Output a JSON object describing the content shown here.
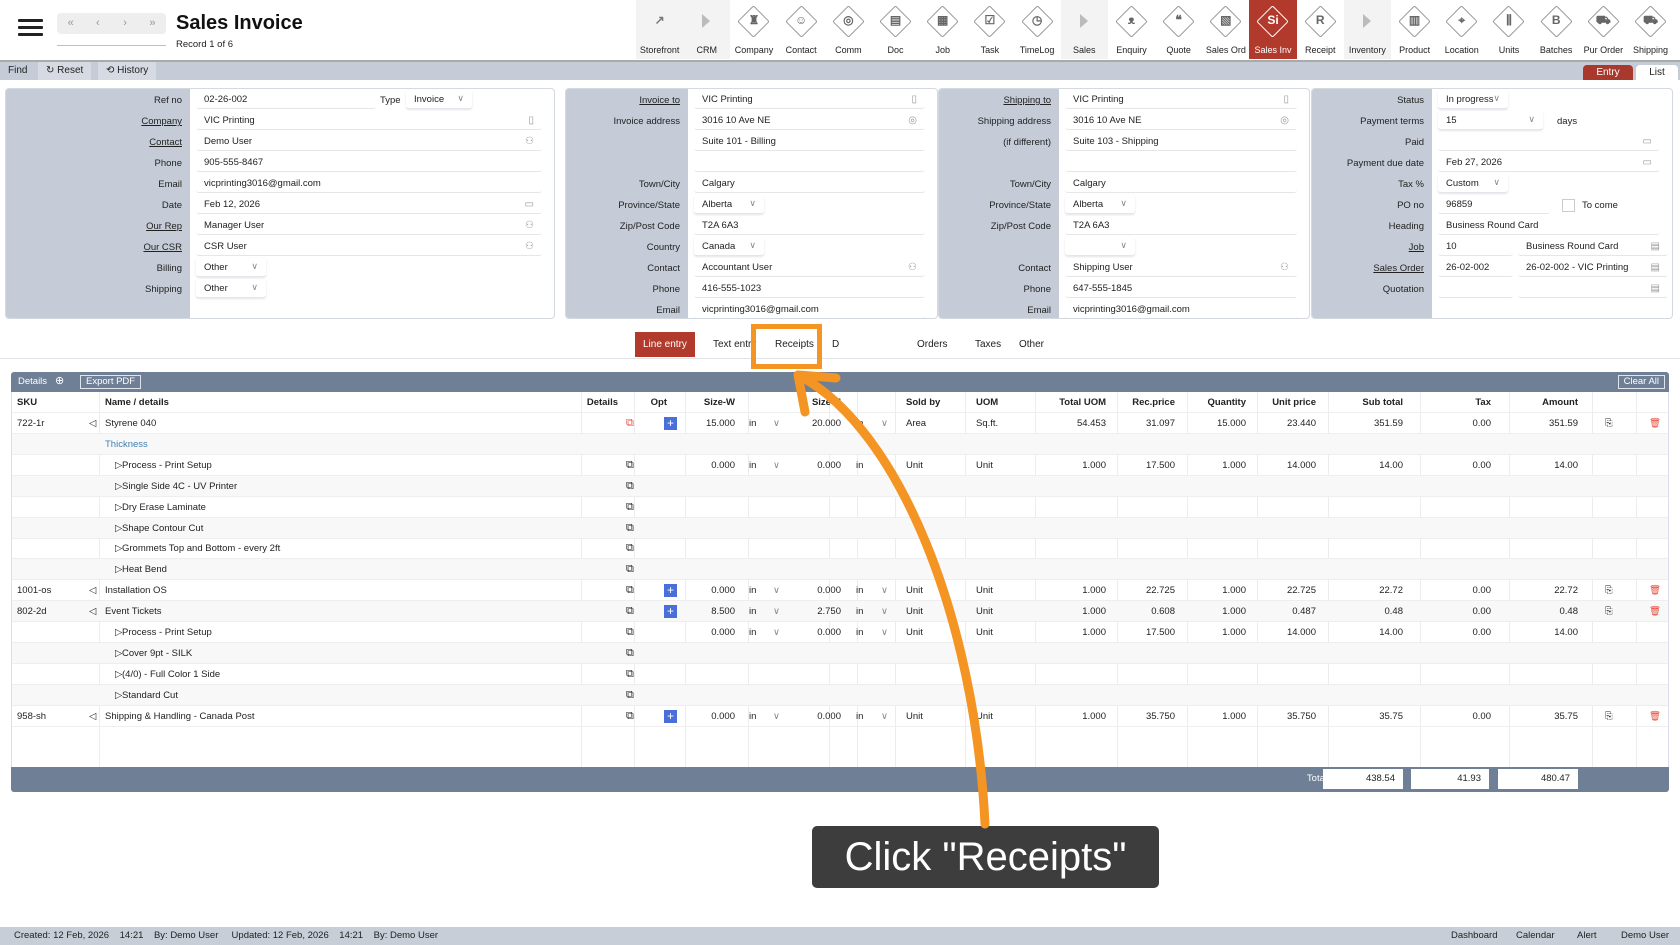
{
  "header": {
    "title": "Sales Invoice",
    "record": "Record 1 of 6",
    "nav": [
      "«",
      "‹",
      "›",
      "»"
    ]
  },
  "topnav": [
    {
      "label": "Storefront",
      "icon": "external-link-icon",
      "glyph": "↗",
      "style": "grey"
    },
    {
      "label": "CRM",
      "icon": "arrow-icon",
      "style": "arrow"
    },
    {
      "label": "Company",
      "icon": "company-icon",
      "glyph": "♜"
    },
    {
      "label": "Contact",
      "icon": "contact-icon",
      "glyph": "☺"
    },
    {
      "label": "Comm",
      "icon": "globe-icon",
      "glyph": "◎"
    },
    {
      "label": "Doc",
      "icon": "document-icon",
      "glyph": "▤"
    },
    {
      "label": "Job",
      "icon": "job-icon",
      "glyph": "▦"
    },
    {
      "label": "Task",
      "icon": "clipboard-icon",
      "glyph": "☑"
    },
    {
      "label": "TimeLog",
      "icon": "clock-icon",
      "glyph": "◷"
    },
    {
      "label": "Sales",
      "icon": "arrow-icon",
      "style": "arrow"
    },
    {
      "label": "Enquiry",
      "icon": "binoculars-icon",
      "glyph": "ᴥ"
    },
    {
      "label": "Quote",
      "icon": "quote-icon",
      "glyph": "❝"
    },
    {
      "label": "Sales Ord",
      "icon": "sales-order-icon",
      "glyph": "▧"
    },
    {
      "label": "Sales Inv",
      "icon": "sales-invoice-icon",
      "glyph": "Si",
      "style": "active"
    },
    {
      "label": "Receipt",
      "icon": "receipt-icon",
      "glyph": "R"
    },
    {
      "label": "Inventory",
      "icon": "arrow-icon",
      "style": "arrow"
    },
    {
      "label": "Product",
      "icon": "product-icon",
      "glyph": "▥"
    },
    {
      "label": "Location",
      "icon": "location-icon",
      "glyph": "⌖"
    },
    {
      "label": "Units",
      "icon": "units-icon",
      "glyph": "⫼"
    },
    {
      "label": "Batches",
      "icon": "batches-icon",
      "glyph": "B"
    },
    {
      "label": "Pur Order",
      "icon": "cart-icon",
      "glyph": "⛟"
    },
    {
      "label": "Shipping",
      "icon": "truck-icon",
      "glyph": "⛟"
    }
  ],
  "toolbar": {
    "find": "Find",
    "reset": "↻ Reset",
    "history": "⟲ History",
    "entry": "Entry",
    "list": "List"
  },
  "panels": [
    {
      "rows": [
        {
          "label": "Ref no",
          "value": "02-26-002",
          "extra_label": "Type",
          "extra_value": "Invoice"
        },
        {
          "label": "Company",
          "link": true,
          "value": "VIC Printing",
          "icon": "building-icon"
        },
        {
          "label": "Contact",
          "link": true,
          "value": "Demo User",
          "icon": "person-icon"
        },
        {
          "label": "Phone",
          "value": "905-555-8467"
        },
        {
          "label": "Email",
          "value": "vicprinting3016@gmail.com"
        },
        {
          "label": "Date",
          "value": "Feb 12, 2026",
          "icon": "calendar-icon"
        },
        {
          "label": "Our Rep",
          "link": true,
          "value": "Manager User",
          "icon": "person-icon"
        },
        {
          "label": "Our CSR",
          "link": true,
          "value": "CSR User",
          "icon": "person-icon"
        },
        {
          "label": "Billing",
          "value": "Other",
          "select": true
        },
        {
          "label": "Shipping",
          "value": "Other",
          "select": true
        }
      ]
    },
    {
      "rows": [
        {
          "label": "Invoice to",
          "link": true,
          "value": "VIC Printing",
          "icon": "building-icon"
        },
        {
          "label": "Invoice address",
          "value": "3016 10 Ave NE",
          "icon": "pin-icon"
        },
        {
          "label": "",
          "value": "Suite 101 - Billing"
        },
        {
          "label": "",
          "value": ""
        },
        {
          "label": "Town/City",
          "value": "Calgary"
        },
        {
          "label": "Province/State",
          "value": "Alberta",
          "select": true
        },
        {
          "label": "Zip/Post Code",
          "value": "T2A 6A3"
        },
        {
          "label": "Country",
          "value": "Canada",
          "select": true
        },
        {
          "label": "Contact",
          "value": "Accountant User",
          "icon": "person-icon"
        },
        {
          "label": "Phone",
          "value": "416-555-1023"
        },
        {
          "label": "Email",
          "value": "vicprinting3016@gmail.com"
        }
      ]
    },
    {
      "rows": [
        {
          "label": "Shipping to",
          "link": true,
          "value": "VIC Printing",
          "icon": "building-icon"
        },
        {
          "label": "Shipping address",
          "value": "3016 10 Ave NE",
          "icon": "pin-icon"
        },
        {
          "label": "(if different)",
          "value": "Suite 103 - Shipping"
        },
        {
          "label": "",
          "value": ""
        },
        {
          "label": "Town/City",
          "value": "Calgary"
        },
        {
          "label": "Province/State",
          "value": "Alberta",
          "select": true
        },
        {
          "label": "Zip/Post Code",
          "value": "T2A 6A3"
        },
        {
          "label": "",
          "value": "",
          "select": true
        },
        {
          "label": "Contact",
          "value": "Shipping User",
          "icon": "person-icon"
        },
        {
          "label": "Phone",
          "value": "647-555-1845"
        },
        {
          "label": "Email",
          "value": "vicprinting3016@gmail.com"
        }
      ]
    },
    {
      "rows": [
        {
          "label": "Status",
          "value": "In progress",
          "select": true
        },
        {
          "label": "Payment terms",
          "value": "15",
          "select": true,
          "suffix": "days"
        },
        {
          "label": "Paid",
          "value": "",
          "icon": "calendar-icon"
        },
        {
          "label": "Payment due date",
          "value": "Feb 27, 2026",
          "icon": "calendar-icon"
        },
        {
          "label": "Tax %",
          "value": "Custom",
          "select": true
        },
        {
          "label": "PO no",
          "value": "96859",
          "checkbox_label": "To come",
          "checked": false
        },
        {
          "label": "Heading",
          "value": "Business Round Card"
        },
        {
          "label": "Job",
          "link": true,
          "value": "10",
          "value2": "Business Round Card",
          "icon": "document-icon"
        },
        {
          "label": "Sales Order",
          "link": true,
          "value": "26-02-002",
          "value2": "26-02-002 - VIC Printing",
          "icon": "document-icon"
        },
        {
          "label": "Quotation",
          "value": "",
          "value2": "",
          "icon": "document-icon"
        }
      ]
    }
  ],
  "tabs": [
    {
      "label": "Line entry",
      "active": true
    },
    {
      "label": "Text entry"
    },
    {
      "label": "Receipts"
    },
    {
      "label": "D"
    },
    {
      "label": "Orders"
    },
    {
      "label": "Taxes"
    },
    {
      "label": "Other"
    }
  ],
  "details": {
    "title": "Details",
    "export": "Export PDF",
    "clear": "Clear All"
  },
  "columns": [
    "SKU",
    "Name / details",
    "Details",
    "Opt",
    "Size-W",
    "Size-H",
    "Sold by",
    "UOM",
    "Total UOM",
    "Rec.price",
    "Quantity",
    "Unit price",
    "Sub total",
    "Tax",
    "Amount"
  ],
  "lines": [
    {
      "sku": "722-1r",
      "name": "Styrene 040",
      "kind": "item",
      "opt": true,
      "details_color": "#e74c3c",
      "w": "15.000",
      "wu": "in",
      "h": "20.000",
      "hu": "in",
      "sold": "Area",
      "uom": "Sq.ft.",
      "tuom": "54.453",
      "rec": "31.097",
      "qty": "15.000",
      "up": "23.440",
      "sub": "351.59",
      "tax": "0.00",
      "amt": "351.59"
    },
    {
      "name": "Thickness",
      "kind": "label"
    },
    {
      "name": "Process - Print Setup",
      "kind": "sub",
      "w": "0.000",
      "wu": "in",
      "h": "0.000",
      "hu": "in",
      "sold": "Unit",
      "uom": "Unit",
      "tuom": "1.000",
      "rec": "17.500",
      "qty": "1.000",
      "up": "14.000",
      "sub": "14.00",
      "tax": "0.00",
      "amt": "14.00"
    },
    {
      "name": "Single Side 4C - UV Printer",
      "kind": "sub"
    },
    {
      "name": "Dry Erase Laminate",
      "kind": "sub"
    },
    {
      "name": "Shape Contour Cut",
      "kind": "sub"
    },
    {
      "name": "Grommets Top and Bottom - every 2ft",
      "kind": "sub"
    },
    {
      "name": "Heat Bend",
      "kind": "sub"
    },
    {
      "sku": "1001-os",
      "name": "Installation OS",
      "kind": "item",
      "opt": true,
      "w": "0.000",
      "wu": "in",
      "h": "0.000",
      "hu": "in",
      "sold": "Unit",
      "uom": "Unit",
      "tuom": "1.000",
      "rec": "22.725",
      "qty": "1.000",
      "up": "22.725",
      "sub": "22.72",
      "tax": "0.00",
      "amt": "22.72"
    },
    {
      "sku": "802-2d",
      "name": "Event Tickets",
      "kind": "item",
      "opt": true,
      "w": "8.500",
      "wu": "in",
      "h": "2.750",
      "hu": "in",
      "sold": "Unit",
      "uom": "Unit",
      "tuom": "1.000",
      "rec": "0.608",
      "qty": "1.000",
      "up": "0.487",
      "sub": "0.48",
      "tax": "0.00",
      "amt": "0.48"
    },
    {
      "name": "Process - Print Setup",
      "kind": "sub",
      "w": "0.000",
      "wu": "in",
      "h": "0.000",
      "hu": "in",
      "sold": "Unit",
      "uom": "Unit",
      "tuom": "1.000",
      "rec": "17.500",
      "qty": "1.000",
      "up": "14.000",
      "sub": "14.00",
      "tax": "0.00",
      "amt": "14.00"
    },
    {
      "name": "Cover 9pt - SILK",
      "kind": "sub"
    },
    {
      "name": "(4/0) - Full Color 1 Side",
      "kind": "sub"
    },
    {
      "name": "Standard Cut",
      "kind": "sub"
    },
    {
      "sku": "958-sh",
      "name": "Shipping & Handling - Canada Post",
      "kind": "item",
      "opt": true,
      "w": "0.000",
      "wu": "in",
      "h": "0.000",
      "hu": "in",
      "sold": "Unit",
      "uom": "Unit",
      "tuom": "1.000",
      "rec": "35.750",
      "qty": "1.000",
      "up": "35.750",
      "sub": "35.75",
      "tax": "0.00",
      "amt": "35.75"
    }
  ],
  "totals": {
    "label": "Total",
    "sub_total": "438.54",
    "tax": "41.93",
    "amount": "480.47"
  },
  "footer": {
    "created": "Created: 12 Feb, 2026    14:21    By: Demo User     Updated: 12 Feb, 2026    14:21    By: Demo User",
    "links": [
      "Dashboard",
      "Calendar",
      "Alert",
      "Demo User"
    ]
  },
  "callout": {
    "text": "Click \"Receipts\""
  },
  "colors": {
    "accent": "#b23a2c",
    "header_bar": "#6e7f96",
    "label_bg": "#c5ccd7",
    "callout_orange": "#f39423"
  }
}
